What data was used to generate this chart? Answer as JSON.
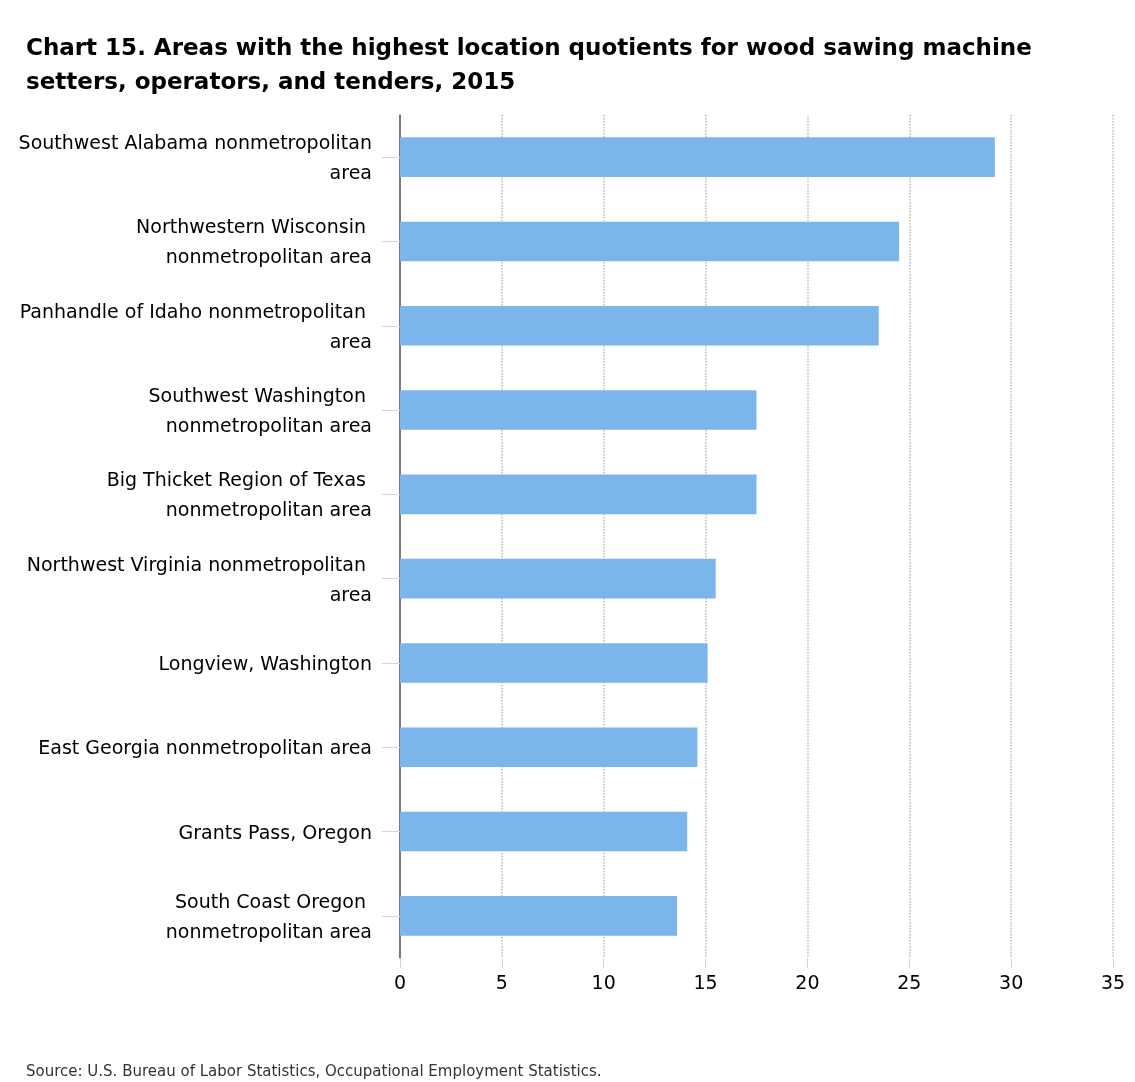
{
  "chart_data": {
    "type": "bar",
    "orientation": "horizontal",
    "title": "Chart 15. Areas with the highest location quotients for wood sawing machine setters, operators, and tenders, 2015",
    "categories": [
      "Southwest Alabama nonmetropolitan area",
      "Northwestern Wisconsin nonmetropolitan area",
      "Panhandle of Idaho nonmetropolitan area",
      "Southwest Washington nonmetropolitan area",
      "Big Thicket Region of Texas nonmetropolitan area",
      "Northwest Virginia nonmetropolitan area",
      "Longview, Washington",
      "East Georgia nonmetropolitan area",
      "Grants Pass, Oregon",
      "South Coast Oregon nonmetropolitan area"
    ],
    "values": [
      29.2,
      24.5,
      23.5,
      17.5,
      17.5,
      15.5,
      15.1,
      14.6,
      14.1,
      13.6
    ],
    "color": "#7cb5ec",
    "xlim": [
      0,
      35
    ],
    "xticks": [
      0,
      5,
      10,
      15,
      20,
      25,
      30,
      35
    ],
    "grid": "x",
    "annotations": [
      "Source: U.S. Bureau of Labor Statistics, Occupational Employment Statistics."
    ]
  }
}
